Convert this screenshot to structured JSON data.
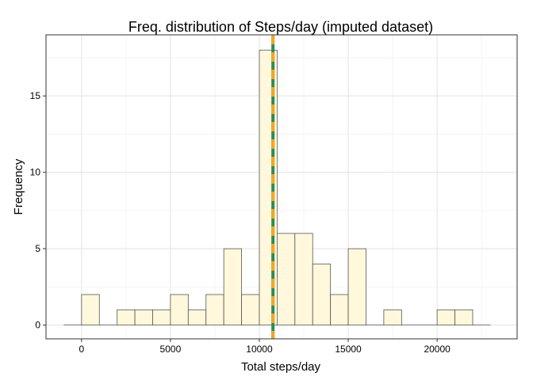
{
  "chart_data": {
    "type": "bar",
    "title": "Freq. distribution of Steps/day (imputed dataset)",
    "xlabel": "Total steps/day",
    "ylabel": "Frequency",
    "xlim": [
      -2000,
      24500
    ],
    "ylim": [
      -0.9,
      19
    ],
    "xticks": [
      0,
      5000,
      10000,
      15000,
      20000
    ],
    "xtick_labels": [
      "0",
      "5000",
      "10000",
      "15000",
      "20000"
    ],
    "yticks": [
      0,
      5,
      10,
      15
    ],
    "ytick_labels": [
      "0",
      "5",
      "10",
      "15"
    ],
    "bin_width": 1000,
    "bins": [
      {
        "start": -1000,
        "count": 0
      },
      {
        "start": 0,
        "count": 2
      },
      {
        "start": 1000,
        "count": 0
      },
      {
        "start": 2000,
        "count": 1
      },
      {
        "start": 3000,
        "count": 1
      },
      {
        "start": 4000,
        "count": 1
      },
      {
        "start": 5000,
        "count": 2
      },
      {
        "start": 6000,
        "count": 1
      },
      {
        "start": 7000,
        "count": 2
      },
      {
        "start": 8000,
        "count": 5
      },
      {
        "start": 9000,
        "count": 2
      },
      {
        "start": 10000,
        "count": 18
      },
      {
        "start": 11000,
        "count": 6
      },
      {
        "start": 12000,
        "count": 6
      },
      {
        "start": 13000,
        "count": 4
      },
      {
        "start": 14000,
        "count": 2
      },
      {
        "start": 15000,
        "count": 5
      },
      {
        "start": 16000,
        "count": 0
      },
      {
        "start": 17000,
        "count": 1
      },
      {
        "start": 18000,
        "count": 0
      },
      {
        "start": 19000,
        "count": 0
      },
      {
        "start": 20000,
        "count": 1
      },
      {
        "start": 21000,
        "count": 1
      },
      {
        "start": 22000,
        "count": 0
      }
    ],
    "vlines": [
      {
        "x": 10766,
        "color": "#2e8b57",
        "style": "solid"
      },
      {
        "x": 10766,
        "color": "#f5a623",
        "style": "dashed"
      }
    ],
    "bar_fill": "#fff8dc",
    "bar_stroke": "#555555",
    "grid": true,
    "legend": "none"
  }
}
